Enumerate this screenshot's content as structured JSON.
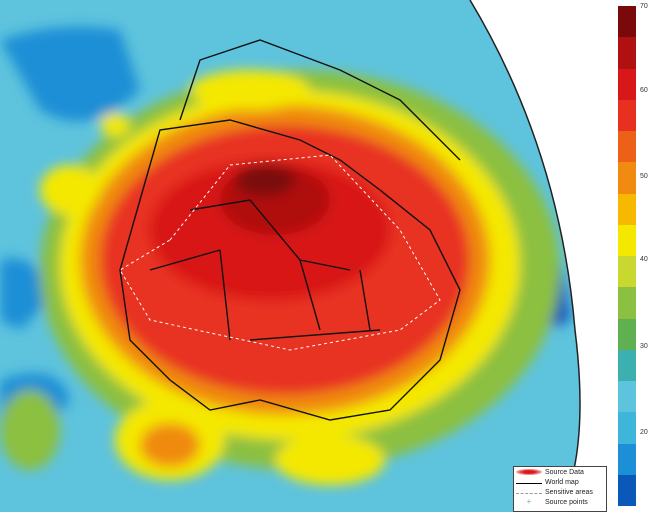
{
  "colorbar": {
    "ticks": [
      "70",
      "60",
      "50",
      "40",
      "30",
      "20"
    ],
    "colors": [
      "#0a58b8",
      "#1c8fd6",
      "#3fb5d9",
      "#5ec3dd",
      "#3cb0b0",
      "#5fb050",
      "#8cc040",
      "#c8d830",
      "#f4e800",
      "#f7b800",
      "#f08a10",
      "#ec6018",
      "#e83020",
      "#d81818",
      "#b01010",
      "#7a0a0a"
    ]
  },
  "legend": {
    "items": [
      {
        "label": "Source Data",
        "icon": "red-ellipse"
      },
      {
        "label": "World map",
        "icon": "black-line"
      },
      {
        "label": "Sensitive areas",
        "icon": "dashed-white-line"
      },
      {
        "label": "Source points",
        "icon": "cross-point"
      }
    ]
  }
}
